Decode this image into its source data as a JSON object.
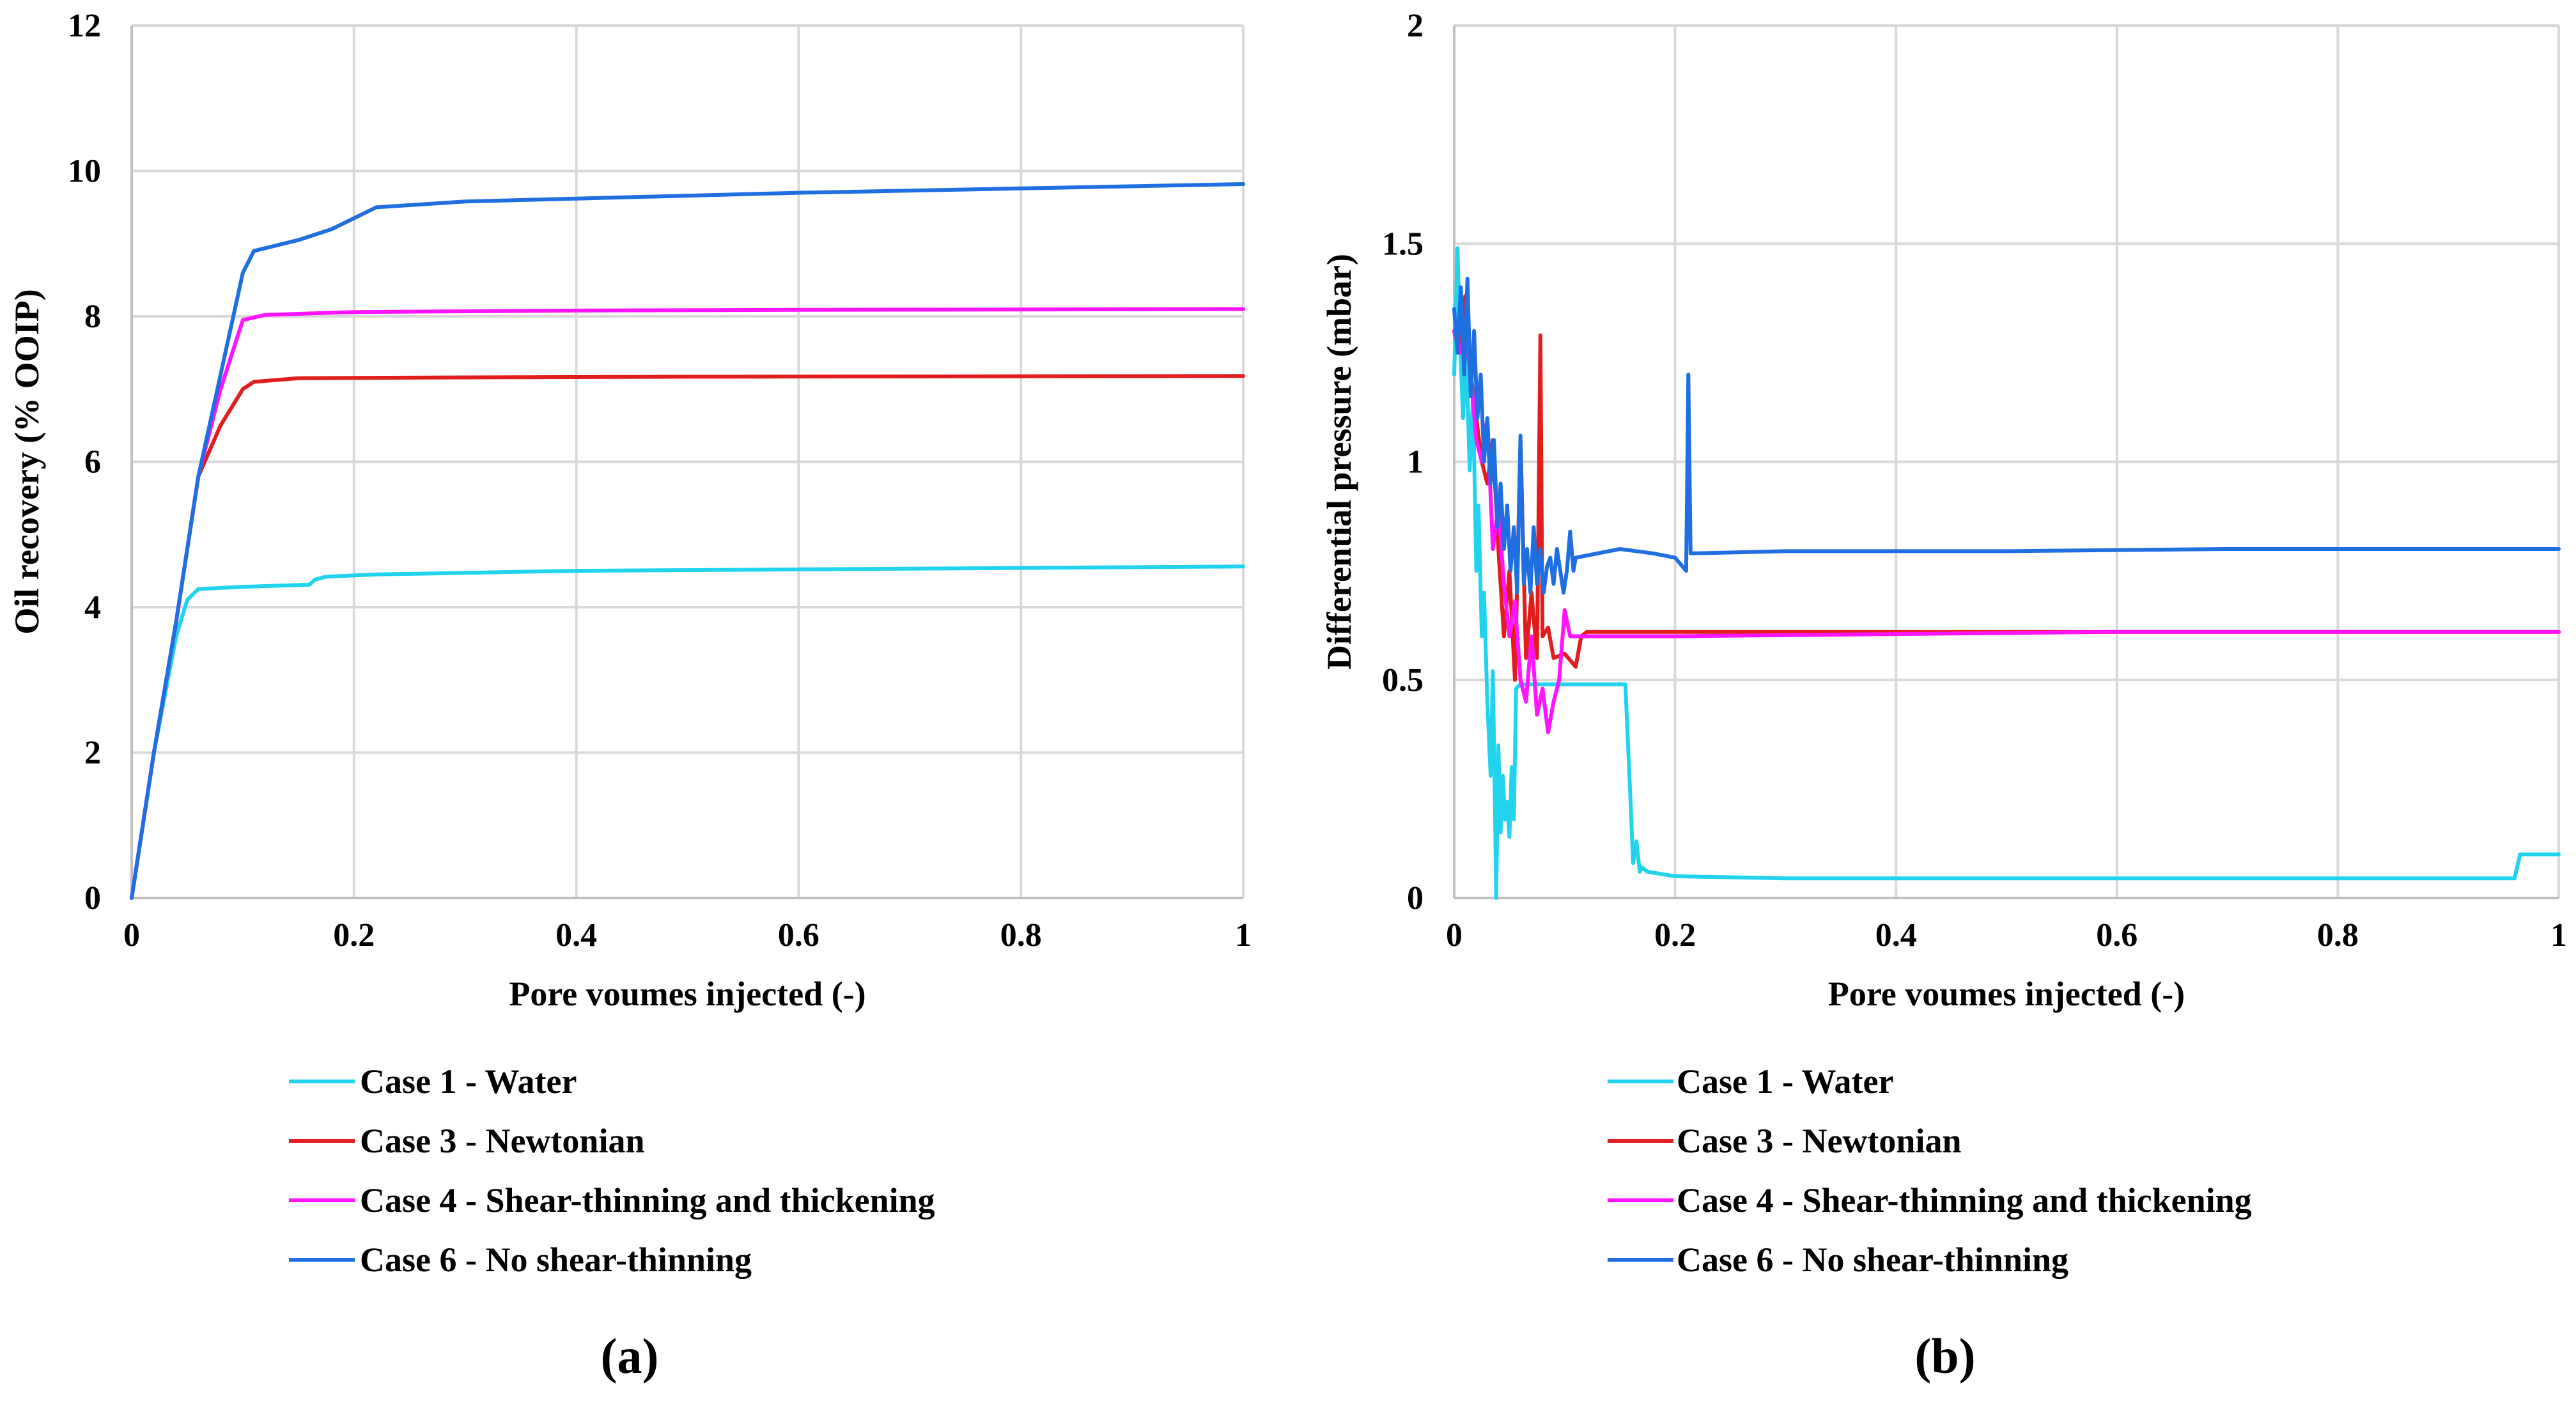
{
  "colors": {
    "case1": "#22d3ee",
    "case3": "#e11d1d",
    "case4": "#ff14ff",
    "case6": "#1f6fe0"
  },
  "chart_data": [
    {
      "type": "line",
      "panel_label": "(a)",
      "xlabel": "Pore voumes injected (-)",
      "ylabel": "Oil recovery (% OOIP)",
      "xlim": [
        0,
        1
      ],
      "ylim": [
        0,
        12
      ],
      "xticks": [
        "0",
        "0.2",
        "0.4",
        "0.6",
        "0.8",
        "1"
      ],
      "yticks": [
        "0",
        "2",
        "4",
        "6",
        "8",
        "10",
        "12"
      ],
      "grid": true,
      "legend_position": "bottom",
      "series": [
        {
          "name": "Case 1 - Water",
          "color_key": "case1",
          "x": [
            0,
            0.02,
            0.04,
            0.05,
            0.06,
            0.1,
            0.16,
            0.165,
            0.175,
            0.22,
            0.4,
            0.6,
            0.8,
            1.0
          ],
          "y": [
            0,
            2.0,
            3.6,
            4.1,
            4.25,
            4.28,
            4.31,
            4.38,
            4.42,
            4.45,
            4.5,
            4.52,
            4.54,
            4.56
          ]
        },
        {
          "name": "Case 3 - Newtonian",
          "color_key": "case3",
          "x": [
            0,
            0.02,
            0.04,
            0.06,
            0.08,
            0.1,
            0.11,
            0.15,
            0.3,
            0.5,
            1.0
          ],
          "y": [
            0,
            2.0,
            3.8,
            5.8,
            6.5,
            7.0,
            7.1,
            7.15,
            7.16,
            7.17,
            7.18
          ]
        },
        {
          "name": "Case 4 - Shear-thinning and thickening",
          "color_key": "case4",
          "x": [
            0,
            0.02,
            0.04,
            0.06,
            0.08,
            0.1,
            0.12,
            0.2,
            0.4,
            0.6,
            1.0
          ],
          "y": [
            0,
            2.0,
            3.8,
            5.8,
            7.0,
            7.95,
            8.02,
            8.06,
            8.08,
            8.09,
            8.1
          ]
        },
        {
          "name": "Case 6 - No shear-thinning",
          "color_key": "case6",
          "x": [
            0,
            0.02,
            0.04,
            0.06,
            0.08,
            0.1,
            0.11,
            0.15,
            0.18,
            0.2,
            0.22,
            0.3,
            0.4,
            0.6,
            0.8,
            1.0
          ],
          "y": [
            0,
            2.0,
            3.8,
            5.8,
            7.2,
            8.6,
            8.9,
            9.05,
            9.2,
            9.35,
            9.5,
            9.58,
            9.62,
            9.7,
            9.76,
            9.82
          ]
        }
      ]
    },
    {
      "type": "line",
      "panel_label": "(b)",
      "xlabel": "Pore voumes injected (-)",
      "ylabel": "Differential pressure (mbar)",
      "xlim": [
        0,
        1
      ],
      "ylim": [
        0,
        2
      ],
      "xticks": [
        "0",
        "0.2",
        "0.4",
        "0.6",
        "0.8",
        "1"
      ],
      "yticks": [
        "0",
        "0.5",
        "1",
        "1.5",
        "2"
      ],
      "grid": true,
      "legend_position": "bottom",
      "series": [
        {
          "name": "Case 1 - Water",
          "color_key": "case1",
          "x": [
            0,
            0.003,
            0.005,
            0.008,
            0.011,
            0.014,
            0.017,
            0.02,
            0.022,
            0.025,
            0.027,
            0.03,
            0.033,
            0.035,
            0.037,
            0.038,
            0.04,
            0.042,
            0.044,
            0.046,
            0.048,
            0.05,
            0.052,
            0.054,
            0.056,
            0.06,
            0.1,
            0.155,
            0.16,
            0.162,
            0.165,
            0.168,
            0.17,
            0.175,
            0.2,
            0.3,
            0.4,
            0.6,
            0.8,
            0.96,
            0.965,
            0.97,
            1.0
          ],
          "y": [
            1.2,
            1.49,
            1.3,
            1.1,
            1.25,
            0.98,
            1.15,
            0.75,
            0.9,
            0.6,
            0.7,
            0.45,
            0.28,
            0.52,
            0.2,
            0.0,
            0.35,
            0.15,
            0.28,
            0.18,
            0.22,
            0.14,
            0.3,
            0.18,
            0.48,
            0.49,
            0.49,
            0.49,
            0.2,
            0.08,
            0.13,
            0.06,
            0.07,
            0.06,
            0.05,
            0.045,
            0.045,
            0.045,
            0.045,
            0.045,
            0.1,
            0.1,
            0.1
          ]
        },
        {
          "name": "Case 3 - Newtonian",
          "color_key": "case3",
          "x": [
            0,
            0.005,
            0.01,
            0.015,
            0.02,
            0.025,
            0.03,
            0.035,
            0.04,
            0.045,
            0.05,
            0.055,
            0.06,
            0.065,
            0.07,
            0.075,
            0.078,
            0.08,
            0.085,
            0.09,
            0.1,
            0.11,
            0.115,
            0.12,
            0.3,
            0.6,
            1.0
          ],
          "y": [
            1.3,
            1.25,
            1.38,
            1.2,
            1.1,
            1.0,
            0.95,
            1.05,
            0.8,
            0.6,
            0.75,
            0.5,
            1.05,
            0.55,
            0.7,
            0.55,
            1.29,
            0.6,
            0.62,
            0.55,
            0.56,
            0.53,
            0.6,
            0.61,
            0.61,
            0.61,
            0.61
          ]
        },
        {
          "name": "Case 4 - Shear-thinning and thickening",
          "color_key": "case4",
          "x": [
            0,
            0.005,
            0.01,
            0.015,
            0.02,
            0.025,
            0.03,
            0.035,
            0.04,
            0.045,
            0.05,
            0.055,
            0.06,
            0.065,
            0.07,
            0.075,
            0.08,
            0.085,
            0.09,
            0.095,
            0.1,
            0.105,
            0.11,
            0.2,
            0.4,
            0.6,
            0.8,
            1.0
          ],
          "y": [
            1.3,
            1.25,
            1.3,
            1.2,
            1.05,
            1.0,
            1.1,
            0.8,
            0.9,
            0.72,
            0.6,
            0.68,
            0.5,
            0.45,
            0.6,
            0.42,
            0.48,
            0.38,
            0.45,
            0.5,
            0.66,
            0.6,
            0.6,
            0.6,
            0.605,
            0.61,
            0.61,
            0.61
          ]
        },
        {
          "name": "Case 6 - No shear-thinning",
          "color_key": "case6",
          "x": [
            0,
            0.003,
            0.006,
            0.009,
            0.012,
            0.015,
            0.018,
            0.021,
            0.024,
            0.027,
            0.03,
            0.033,
            0.036,
            0.039,
            0.042,
            0.045,
            0.048,
            0.051,
            0.054,
            0.057,
            0.06,
            0.063,
            0.066,
            0.069,
            0.072,
            0.075,
            0.078,
            0.081,
            0.084,
            0.087,
            0.09,
            0.093,
            0.096,
            0.099,
            0.102,
            0.105,
            0.108,
            0.11,
            0.15,
            0.18,
            0.2,
            0.21,
            0.212,
            0.214,
            0.216,
            0.3,
            0.5,
            0.7,
            1.0
          ],
          "y": [
            1.35,
            1.25,
            1.4,
            1.2,
            1.42,
            1.15,
            1.3,
            1.1,
            1.2,
            1.0,
            1.1,
            0.95,
            1.05,
            0.85,
            0.95,
            0.8,
            0.9,
            0.75,
            0.85,
            0.7,
            1.06,
            0.72,
            0.8,
            0.7,
            0.85,
            0.72,
            0.8,
            0.7,
            0.76,
            0.78,
            0.72,
            0.8,
            0.75,
            0.7,
            0.75,
            0.84,
            0.75,
            0.78,
            0.8,
            0.79,
            0.78,
            0.75,
            1.2,
            0.79,
            0.79,
            0.795,
            0.795,
            0.8,
            0.8
          ]
        }
      ]
    }
  ]
}
